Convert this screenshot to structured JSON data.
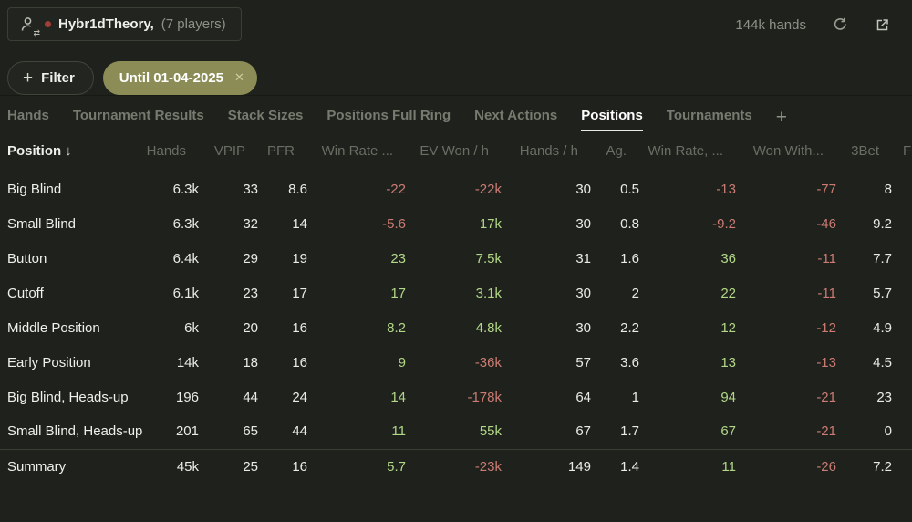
{
  "header": {
    "player": {
      "name": "Hybr1dTheory,",
      "players": "(7 players)"
    },
    "hands_count": "144k hands",
    "icons": [
      "player-swap-icon",
      "refresh-icon",
      "open-external-icon"
    ]
  },
  "filters": {
    "add_label": "Filter",
    "chips": [
      {
        "label": "Until 01-04-2025",
        "close_icon": "close-icon"
      }
    ]
  },
  "tabs": {
    "items": [
      {
        "label": "Hands",
        "active": false
      },
      {
        "label": "Tournament Results",
        "active": false
      },
      {
        "label": "Stack Sizes",
        "active": false
      },
      {
        "label": "Positions Full Ring",
        "active": false
      },
      {
        "label": "Next Actions",
        "active": false
      },
      {
        "label": "Positions",
        "active": true
      },
      {
        "label": "Tournaments",
        "active": false
      }
    ],
    "add_tab_label": "+"
  },
  "table": {
    "sort_column": "Position",
    "sort_arrow": "↓",
    "columns": [
      "Hands",
      "VPIP",
      "PFR",
      "Win Rate ...",
      "EV Won / h",
      "Hands / h",
      "Ag.",
      "Win Rate, ...",
      "Won With...",
      "3Bet"
    ],
    "overflow_column": "F",
    "colored_columns": [
      3,
      4,
      7,
      8
    ],
    "rows": [
      {
        "label": "Big Blind",
        "values": [
          "6.3k",
          "33",
          "8.6",
          "-22",
          "-22k",
          "30",
          "0.5",
          "-13",
          "-77",
          "8"
        ]
      },
      {
        "label": "Small Blind",
        "values": [
          "6.3k",
          "32",
          "14",
          "-5.6",
          "17k",
          "30",
          "0.8",
          "-9.2",
          "-46",
          "9.2"
        ]
      },
      {
        "label": "Button",
        "values": [
          "6.4k",
          "29",
          "19",
          "23",
          "7.5k",
          "31",
          "1.6",
          "36",
          "-11",
          "7.7"
        ]
      },
      {
        "label": "Cutoff",
        "values": [
          "6.1k",
          "23",
          "17",
          "17",
          "3.1k",
          "30",
          "2",
          "22",
          "-11",
          "5.7"
        ]
      },
      {
        "label": "Middle Position",
        "values": [
          "6k",
          "20",
          "16",
          "8.2",
          "4.8k",
          "30",
          "2.2",
          "12",
          "-12",
          "4.9"
        ]
      },
      {
        "label": "Early Position",
        "values": [
          "14k",
          "18",
          "16",
          "9",
          "-36k",
          "57",
          "3.6",
          "13",
          "-13",
          "4.5"
        ]
      },
      {
        "label": "Big Blind, Heads-up",
        "values": [
          "196",
          "44",
          "24",
          "14",
          "-178k",
          "64",
          "1",
          "94",
          "-21",
          "23"
        ]
      },
      {
        "label": "Small Blind, Heads-up",
        "values": [
          "201",
          "65",
          "44",
          "11",
          "55k",
          "67",
          "1.7",
          "67",
          "-21",
          "0"
        ]
      }
    ],
    "summary": {
      "label": "Summary",
      "values": [
        "45k",
        "25",
        "16",
        "5.7",
        "-23k",
        "149",
        "1.4",
        "11",
        "-26",
        "7.2"
      ]
    }
  },
  "colors": {
    "background": "#1f221c",
    "positive": "#b2d788",
    "negative": "#cb7b73",
    "chip": "#8c8d56",
    "status_dot": "#a23d38"
  }
}
